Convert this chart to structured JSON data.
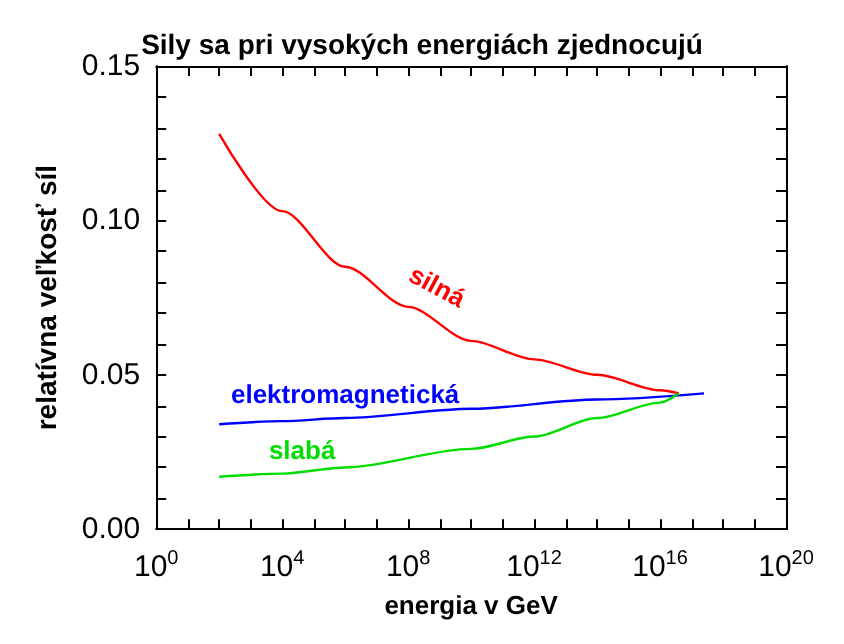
{
  "chart_data": {
    "type": "line",
    "title": "Sily sa pri vysokých energiách zjednocujú",
    "xlabel": "energia v GeV",
    "ylabel": "relatívna veľkosť síl",
    "log": "x",
    "grid": false,
    "legend": false,
    "marker": "none",
    "line_style": "solid",
    "xlim": [
      1,
      1e+20
    ],
    "xticks": [
      {
        "value": 1,
        "label": "10$^{0}$"
      },
      {
        "value": 10.0,
        "label": null
      },
      {
        "value": 100.0,
        "label": null
      },
      {
        "value": 1000.0,
        "label": null
      },
      {
        "value": 10000.0,
        "label": "10$^{4}$"
      },
      {
        "value": 100000.0,
        "label": null
      },
      {
        "value": 1000000.0,
        "label": null
      },
      {
        "value": 10000000.0,
        "label": null
      },
      {
        "value": 100000000.0,
        "label": "10$^{8}$"
      },
      {
        "value": 1000000000.0,
        "label": null
      },
      {
        "value": 10000000000.0,
        "label": null
      },
      {
        "value": 100000000000.0,
        "label": null
      },
      {
        "value": 1000000000000.0,
        "label": "10$^{12}$"
      },
      {
        "value": 10000000000000.0,
        "label": null
      },
      {
        "value": 100000000000000.0,
        "label": null
      },
      {
        "value": 1000000000000000.0,
        "label": null
      },
      {
        "value": 1e+16,
        "label": "10$^{16}$"
      },
      {
        "value": 1e+17,
        "label": null
      },
      {
        "value": 1e+18,
        "label": null
      },
      {
        "value": 1e+19,
        "label": null
      },
      {
        "value": 1e+20,
        "label": "10$^{20}$"
      }
    ],
    "ylim": [
      0,
      0.15
    ],
    "yticks": [
      {
        "value": 0,
        "label": "0.00"
      },
      {
        "value": 0.01,
        "label": null
      },
      {
        "value": 0.02,
        "label": null
      },
      {
        "value": 0.03,
        "label": null
      },
      {
        "value": 0.04,
        "label": null
      },
      {
        "value": 0.05,
        "label": "0.05"
      },
      {
        "value": 0.06,
        "label": null
      },
      {
        "value": 0.07,
        "label": null
      },
      {
        "value": 0.08,
        "label": null
      },
      {
        "value": 0.09,
        "label": null
      },
      {
        "value": 0.1,
        "label": "0.10"
      },
      {
        "value": 0.11,
        "label": null
      },
      {
        "value": 0.12,
        "label": null
      },
      {
        "value": 0.13,
        "label": null
      },
      {
        "value": 0.14,
        "label": null
      },
      {
        "value": 0.15,
        "label": "0.15"
      }
    ],
    "series": [
      {
        "name": "silná",
        "color": "#ff0000",
        "x": [
          100.0,
          10000.0,
          1000000.0,
          100000000.0,
          10000000000.0,
          1000000000000.0,
          100000000000000.0,
          1e+16,
          4e+16
        ],
        "values": [
          0.128,
          0.103,
          0.085,
          0.072,
          0.061,
          0.055,
          0.05,
          0.045,
          0.044
        ]
      },
      {
        "name": "elektromagnetická",
        "color": "#0000ff",
        "x": [
          100.0,
          10000.0,
          1000000.0,
          10000000000.0,
          100000000000000.0,
          2.5e+17
        ],
        "values": [
          0.034,
          0.035,
          0.036,
          0.039,
          0.042,
          0.044
        ]
      },
      {
        "name": "slabá",
        "color": "#00dd00",
        "x": [
          100.0,
          10000.0,
          1000000.0,
          10000000000.0,
          1000000000000.0,
          100000000000000.0,
          1e+16,
          4e+16
        ],
        "values": [
          0.017,
          0.018,
          0.02,
          0.026,
          0.03,
          0.036,
          0.041,
          0.044
        ]
      }
    ]
  }
}
